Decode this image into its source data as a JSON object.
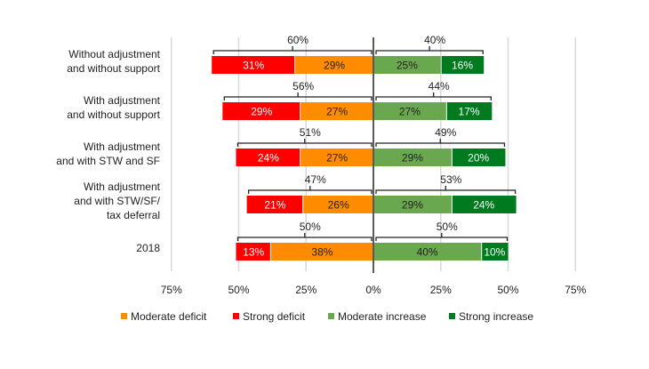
{
  "chart_data": {
    "type": "bar",
    "orientation": "horizontal-diverging",
    "categories": [
      [
        "Without adjustment",
        "and without support"
      ],
      [
        "With adjustment",
        "and without support"
      ],
      [
        "With adjustment",
        "and with STW and SF"
      ],
      [
        "With adjustment",
        "and with STW/SF/",
        "tax deferral"
      ],
      [
        "2018"
      ]
    ],
    "series": [
      {
        "name": "Moderate deficit",
        "side": "left",
        "color": "#FF8C00",
        "values": [
          29,
          27,
          27,
          26,
          38
        ]
      },
      {
        "name": "Strong deficit",
        "side": "left",
        "color": "#FF0000",
        "values": [
          31,
          29,
          24,
          21,
          13
        ]
      },
      {
        "name": "Moderate increase",
        "side": "right",
        "color": "#6AA84F",
        "values": [
          25,
          27,
          29,
          29,
          40
        ]
      },
      {
        "name": "Strong increase",
        "side": "right",
        "color": "#007A1E",
        "values": [
          16,
          17,
          20,
          24,
          10
        ]
      }
    ],
    "deficit_totals": [
      "60%",
      "56%",
      "51%",
      "47%",
      "50%"
    ],
    "increase_totals": [
      "40%",
      "44%",
      "49%",
      "53%",
      "50%"
    ],
    "xlim": [
      -75,
      75
    ],
    "xticks": [
      -75,
      -50,
      -25,
      0,
      25,
      50,
      75
    ],
    "xtick_labels": [
      "75%",
      "50%",
      "25%",
      "0%",
      "25%",
      "50%",
      "75%"
    ],
    "grid": true,
    "legend_position": "bottom"
  }
}
